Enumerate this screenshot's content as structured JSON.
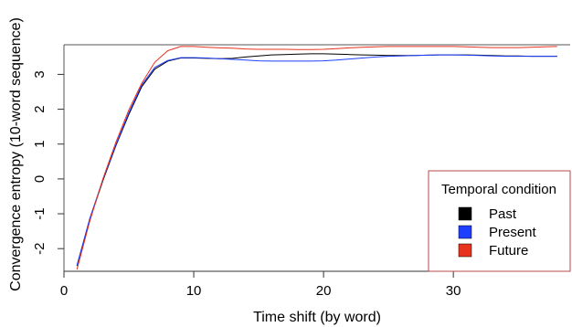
{
  "chart_data": {
    "type": "line",
    "title": "",
    "xlabel": "Time shift (by word)",
    "ylabel": "Convergence entropy (10-word sequence)",
    "xlim": [
      0,
      39
    ],
    "ylim": [
      -2.65,
      3.85
    ],
    "xticks": [
      0,
      10,
      20,
      30
    ],
    "yticks": [
      -2,
      -1,
      0,
      1,
      2,
      3
    ],
    "grid": false,
    "legend": {
      "title": "Temporal condition",
      "placement": "bottom-right",
      "entries": [
        "Past",
        "Present",
        "Future"
      ]
    },
    "x": [
      1,
      2,
      3,
      4,
      5,
      6,
      7,
      8,
      9,
      10,
      11,
      12,
      13,
      14,
      15,
      16,
      17,
      18,
      19,
      20,
      21,
      22,
      23,
      24,
      25,
      26,
      27,
      28,
      29,
      30,
      31,
      32,
      33,
      34,
      35,
      36,
      37,
      38
    ],
    "series": [
      {
        "name": "Past",
        "color": "#000000",
        "values": [
          -2.5,
          -1.15,
          -0.05,
          0.95,
          1.85,
          2.65,
          3.15,
          3.38,
          3.47,
          3.47,
          3.46,
          3.45,
          3.46,
          3.5,
          3.53,
          3.56,
          3.57,
          3.58,
          3.59,
          3.59,
          3.58,
          3.57,
          3.56,
          3.55,
          3.54,
          3.54,
          3.54,
          3.55,
          3.56,
          3.56,
          3.56,
          3.55,
          3.54,
          3.53,
          3.53,
          3.52,
          3.52,
          3.52
        ]
      },
      {
        "name": "Present",
        "color": "#1f3fff",
        "values": [
          -2.48,
          -1.12,
          -0.02,
          0.98,
          1.9,
          2.7,
          3.2,
          3.4,
          3.48,
          3.48,
          3.47,
          3.45,
          3.43,
          3.41,
          3.39,
          3.38,
          3.38,
          3.38,
          3.38,
          3.39,
          3.41,
          3.44,
          3.47,
          3.5,
          3.52,
          3.53,
          3.54,
          3.55,
          3.56,
          3.56,
          3.55,
          3.54,
          3.53,
          3.52,
          3.52,
          3.52,
          3.52,
          3.52
        ]
      },
      {
        "name": "Future",
        "color": "#e8321e",
        "values": [
          -2.6,
          -1.2,
          0.0,
          1.05,
          1.98,
          2.75,
          3.35,
          3.68,
          3.8,
          3.8,
          3.78,
          3.76,
          3.75,
          3.73,
          3.72,
          3.72,
          3.72,
          3.71,
          3.71,
          3.72,
          3.74,
          3.76,
          3.78,
          3.79,
          3.8,
          3.8,
          3.8,
          3.8,
          3.8,
          3.8,
          3.79,
          3.78,
          3.77,
          3.77,
          3.77,
          3.78,
          3.79,
          3.8
        ]
      }
    ]
  }
}
